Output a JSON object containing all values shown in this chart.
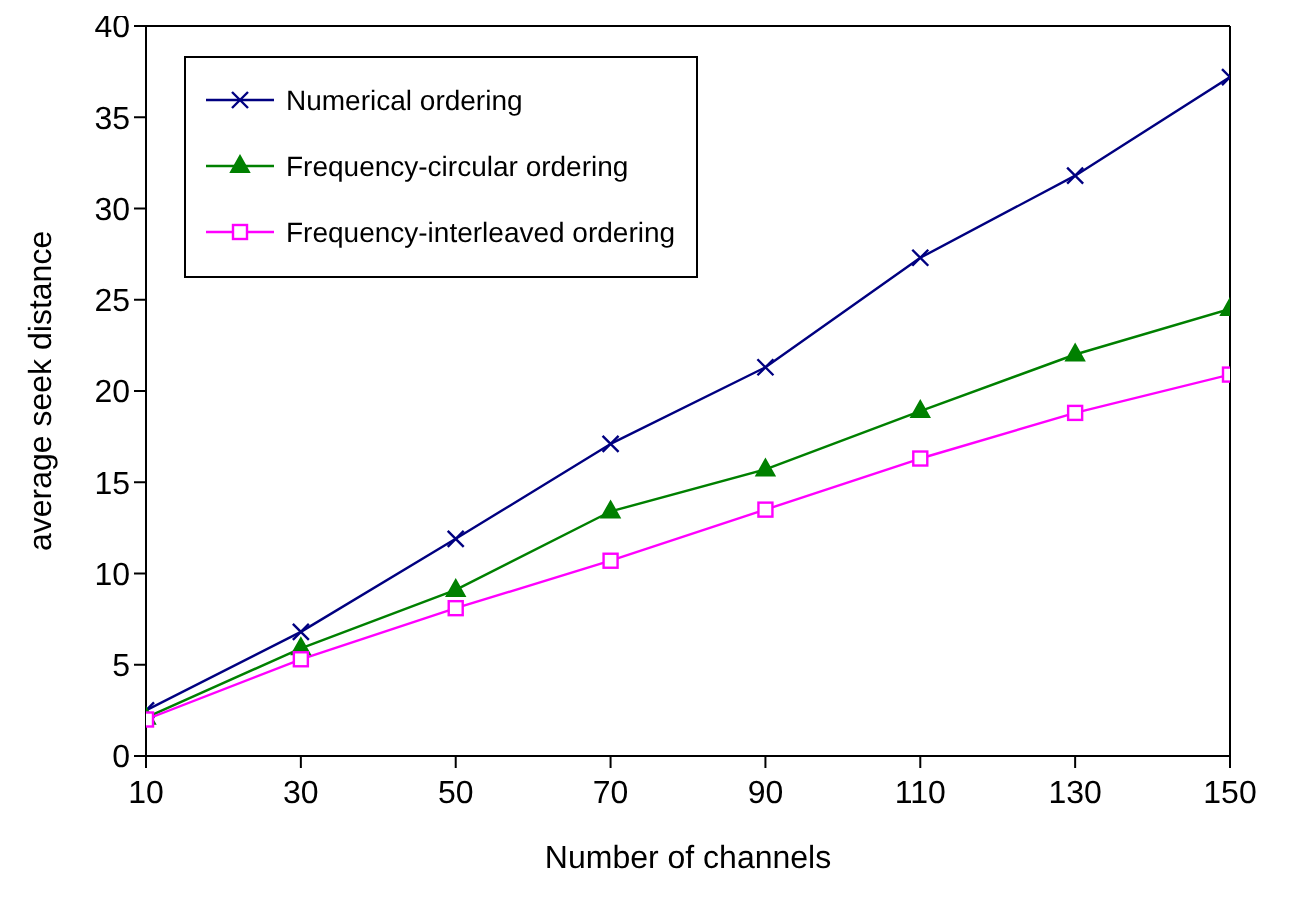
{
  "chart_data": {
    "type": "line",
    "xlabel": "Number of channels",
    "ylabel": "average seek distance",
    "x": [
      10,
      30,
      50,
      70,
      90,
      110,
      130,
      150
    ],
    "xlim": [
      10,
      150
    ],
    "xticks": [
      10,
      30,
      50,
      70,
      90,
      110,
      130,
      150
    ],
    "ylim": [
      0,
      40
    ],
    "yticks": [
      0,
      5,
      10,
      15,
      20,
      25,
      30,
      35,
      40
    ],
    "grid": false,
    "legend": "top left",
    "line_style": "solid",
    "series": [
      {
        "name": "Numerical ordering",
        "color": "#000080",
        "marker": "cross",
        "values": [
          2.5,
          6.8,
          11.9,
          17.1,
          21.3,
          27.3,
          31.8,
          37.2
        ]
      },
      {
        "name": "Frequency-circular ordering",
        "color": "#008000",
        "marker": "triangle",
        "values": [
          2.1,
          5.9,
          9.1,
          13.4,
          15.7,
          18.9,
          22.0,
          24.5
        ]
      },
      {
        "name": "Frequency-interleaved ordering",
        "color": "#ff00ff",
        "marker": "square",
        "values": [
          2.0,
          5.3,
          8.1,
          10.7,
          13.5,
          16.3,
          18.8,
          20.9
        ]
      }
    ]
  }
}
